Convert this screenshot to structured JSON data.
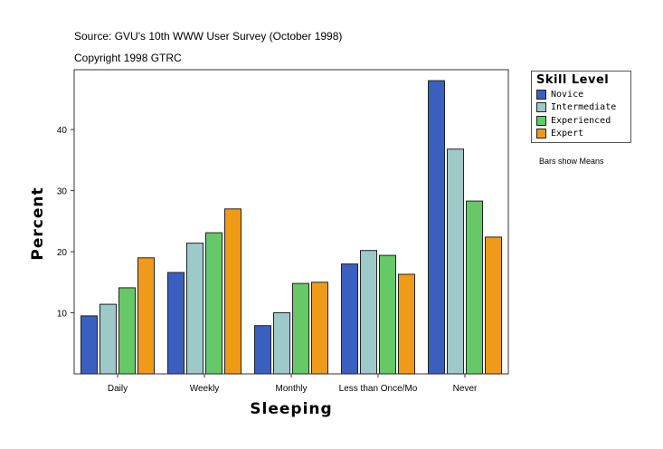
{
  "header": {
    "source": "Source: GVU's 10th WWW User Survey (October 1998)",
    "copyright": "Copyright 1998 GTRC"
  },
  "note": "Bars show Means",
  "legend": {
    "title": "Skill Level",
    "items": [
      "Novice",
      "Intermediate",
      "Experienced",
      "Expert"
    ]
  },
  "colors": {
    "Novice": "#3a5fbf",
    "Intermediate": "#9ec9c9",
    "Experienced": "#66c866",
    "Expert": "#f09a1a"
  },
  "chart_data": {
    "type": "bar",
    "title": "",
    "xlabel": "Sleeping",
    "ylabel": "Percent",
    "categories": [
      "Daily",
      "Weekly",
      "Monthly",
      "Less than Once/Mo",
      "Never"
    ],
    "series": [
      {
        "name": "Novice",
        "values": [
          9.5,
          16.6,
          7.9,
          18.0,
          48.0
        ]
      },
      {
        "name": "Intermediate",
        "values": [
          11.4,
          21.4,
          10.0,
          20.2,
          36.8
        ]
      },
      {
        "name": "Experienced",
        "values": [
          14.1,
          23.1,
          14.8,
          19.4,
          28.3
        ]
      },
      {
        "name": "Expert",
        "values": [
          19.0,
          27.0,
          15.0,
          16.3,
          22.4
        ]
      }
    ],
    "yticks": [
      10,
      20,
      30,
      40
    ],
    "ylim": [
      0,
      49.8
    ],
    "grid": false,
    "legend_position": "right"
  }
}
